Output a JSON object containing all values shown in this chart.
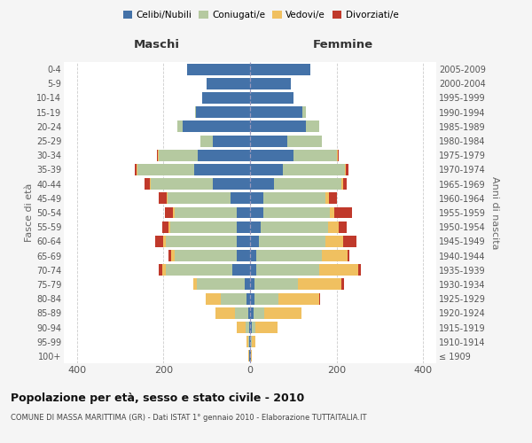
{
  "age_groups": [
    "100+",
    "95-99",
    "90-94",
    "85-89",
    "80-84",
    "75-79",
    "70-74",
    "65-69",
    "60-64",
    "55-59",
    "50-54",
    "45-49",
    "40-44",
    "35-39",
    "30-34",
    "25-29",
    "20-24",
    "15-19",
    "10-14",
    "5-9",
    "0-4"
  ],
  "birth_years": [
    "≤ 1909",
    "1910-1914",
    "1915-1919",
    "1920-1924",
    "1925-1929",
    "1930-1934",
    "1935-1939",
    "1940-1944",
    "1945-1949",
    "1950-1954",
    "1955-1959",
    "1960-1964",
    "1965-1969",
    "1970-1974",
    "1975-1979",
    "1980-1984",
    "1985-1989",
    "1990-1994",
    "1995-1999",
    "2000-2004",
    "2005-2009"
  ],
  "colors": {
    "celibi": "#4472a8",
    "coniugati": "#b5c9a0",
    "vedovi": "#f0c060",
    "divorziati": "#c0392b"
  },
  "maschi": {
    "celibi": [
      2,
      2,
      3,
      5,
      8,
      12,
      40,
      30,
      30,
      30,
      30,
      45,
      85,
      130,
      120,
      85,
      155,
      125,
      110,
      100,
      145
    ],
    "coniugati": [
      0,
      2,
      8,
      30,
      60,
      110,
      155,
      145,
      165,
      155,
      145,
      145,
      145,
      130,
      90,
      30,
      12,
      2,
      0,
      0,
      0
    ],
    "vedovi": [
      2,
      5,
      20,
      45,
      35,
      10,
      8,
      8,
      5,
      3,
      3,
      2,
      2,
      2,
      2,
      0,
      0,
      0,
      0,
      0,
      0
    ],
    "divorziati": [
      0,
      0,
      0,
      0,
      0,
      0,
      8,
      5,
      20,
      15,
      18,
      18,
      12,
      5,
      2,
      0,
      0,
      0,
      0,
      0,
      0
    ]
  },
  "femmine": {
    "celibi": [
      2,
      2,
      5,
      8,
      10,
      10,
      15,
      15,
      20,
      25,
      30,
      30,
      55,
      75,
      100,
      85,
      130,
      120,
      100,
      95,
      140
    ],
    "coniugati": [
      0,
      2,
      8,
      25,
      55,
      100,
      145,
      150,
      155,
      155,
      155,
      145,
      155,
      145,
      100,
      80,
      30,
      8,
      0,
      0,
      0
    ],
    "vedovi": [
      2,
      8,
      50,
      85,
      95,
      100,
      90,
      60,
      40,
      25,
      10,
      8,
      5,
      2,
      2,
      0,
      0,
      0,
      0,
      0,
      0
    ],
    "divorziati": [
      0,
      0,
      0,
      0,
      2,
      8,
      5,
      5,
      30,
      18,
      40,
      18,
      8,
      5,
      2,
      0,
      0,
      0,
      0,
      0,
      0
    ]
  },
  "xlim": 430,
  "title": "Popolazione per età, sesso e stato civile - 2010",
  "subtitle": "COMUNE DI MASSA MARITTIMA (GR) - Dati ISTAT 1° gennaio 2010 - Elaborazione TUTTAITALIA.IT",
  "xlabel_maschi": "Maschi",
  "xlabel_femmine": "Femmine",
  "ylabel": "Fasce di età",
  "ylabel_right": "Anni di nascita",
  "legend_labels": [
    "Celibi/Nubili",
    "Coniugati/e",
    "Vedovi/e",
    "Divorziati/e"
  ],
  "bg_color": "#f5f5f5",
  "plot_bg": "#ffffff"
}
